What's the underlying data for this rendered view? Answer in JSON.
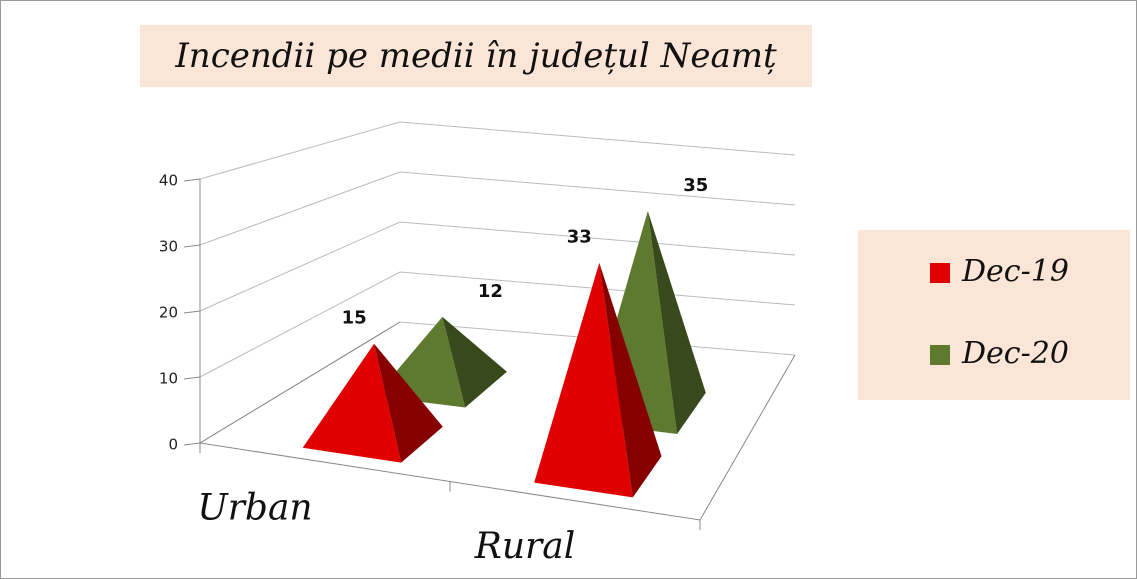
{
  "chart_data": {
    "type": "pyramid3d",
    "title": "Incendii pe medii în județul Neamț",
    "categories": [
      "Urban",
      "Rural"
    ],
    "series": [
      {
        "name": "Dec-19",
        "color": "#e00000",
        "values": [
          15,
          33
        ]
      },
      {
        "name": "Dec-20",
        "color": "#5e7a2e",
        "values": [
          12,
          35
        ]
      }
    ],
    "ylim": [
      0,
      40
    ],
    "yticks": [
      0,
      10,
      20,
      30,
      40
    ],
    "grid": true,
    "legend": "right"
  }
}
